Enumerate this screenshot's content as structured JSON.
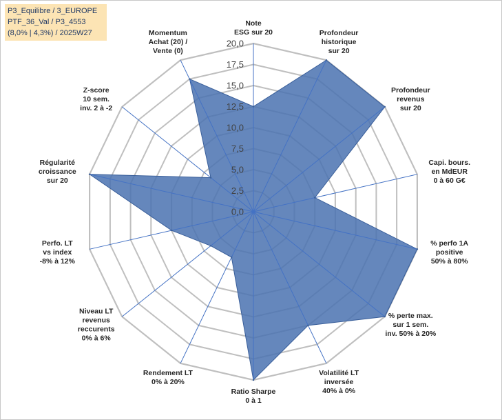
{
  "info_box": {
    "line1": "P3_Equilibre / 3_EUROPE",
    "line2": "PTF_36_Val / P3_4553",
    "line3": "(8,0% | 4,3%) / 2025W27"
  },
  "chart_data": {
    "type": "radar",
    "rmin": 0,
    "rmax": 20,
    "ticks": [
      "0,0",
      "2,5",
      "5,0",
      "7,5",
      "10,0",
      "12,5",
      "15,0",
      "17,5",
      "20,0"
    ],
    "categories": [
      [
        "Note",
        "ESG sur 20"
      ],
      [
        "Profondeur",
        "historique",
        "sur 20"
      ],
      [
        "Profondeur",
        "revenus",
        "sur 20"
      ],
      [
        "Capi. bours.",
        "en MdEUR",
        "0 à 60 G€"
      ],
      [
        "% perfo 1A",
        "positive",
        "50% à 80%"
      ],
      [
        "% perte max.",
        "sur 1 sem.",
        "inv. 50% à 20%"
      ],
      [
        "Volatilité LT",
        "inversée",
        "40% à 0%"
      ],
      [
        "Ratio Sharpe",
        "0 à 1"
      ],
      [
        "Rendement LT",
        "0% à 20%"
      ],
      [
        "Niveau LT",
        "revenus",
        "reccurents",
        "0% à 6%"
      ],
      [
        "Perfo. LT",
        "vs index",
        "-8% à 12%"
      ],
      [
        "Régularité",
        "croissance",
        "sur 20"
      ],
      [
        "Z-score",
        "10 sem.",
        "inv. 2 à -2"
      ],
      [
        "Momentum",
        "Achat (20) /",
        "Vente (0)"
      ]
    ],
    "series": [
      {
        "values": [
          12.5,
          20,
          20,
          7.5,
          20,
          20,
          15,
          20,
          6,
          6.5,
          10,
          20,
          6.5,
          17.5
        ],
        "color": "#4a72b0"
      }
    ],
    "grid": true,
    "grid_color": "#bfbfbf",
    "axis_color": "#4472c4"
  }
}
